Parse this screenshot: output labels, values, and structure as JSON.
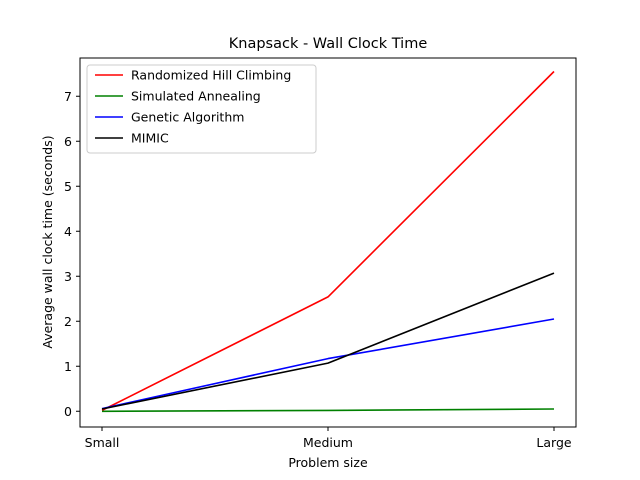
{
  "chart_data": {
    "type": "line",
    "title": "Knapsack - Wall Clock Time",
    "xlabel": "Problem size",
    "ylabel": "Average wall clock time (seconds)",
    "categories": [
      "Small",
      "Medium",
      "Large"
    ],
    "ylim": [
      -0.35,
      7.85
    ],
    "yticks": [
      0,
      1,
      2,
      3,
      4,
      5,
      6,
      7
    ],
    "grid": false,
    "legend_position": "top-left",
    "series": [
      {
        "name": "Randomized Hill Climbing",
        "color": "#ff0000",
        "values": [
          0.02,
          2.54,
          7.55
        ]
      },
      {
        "name": "Simulated Annealing",
        "color": "#008000",
        "values": [
          0.0,
          0.02,
          0.05
        ]
      },
      {
        "name": "Genetic Algorithm",
        "color": "#0000ff",
        "values": [
          0.06,
          1.17,
          2.05
        ]
      },
      {
        "name": "MIMIC",
        "color": "#000000",
        "values": [
          0.05,
          1.07,
          3.07
        ]
      }
    ]
  }
}
